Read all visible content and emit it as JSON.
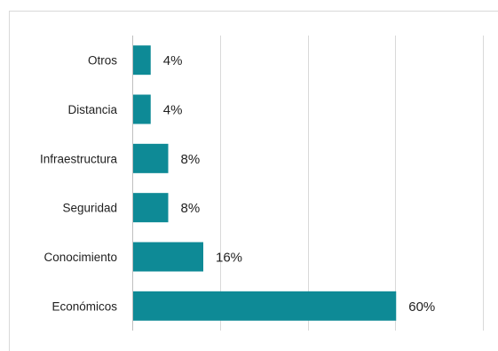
{
  "chart_data": {
    "type": "bar",
    "orientation": "horizontal",
    "categories": [
      "Otros",
      "Distancia",
      "Infraestructura",
      "Seguridad",
      "Conocimiento",
      "Económicos"
    ],
    "values": [
      4,
      4,
      8,
      8,
      16,
      60
    ],
    "data_labels": [
      "4%",
      "4%",
      "8%",
      "8%",
      "16%",
      "60%"
    ],
    "unit": "%",
    "xlim": [
      0,
      80
    ],
    "grid": true,
    "bar_color": "#0E8A96"
  }
}
